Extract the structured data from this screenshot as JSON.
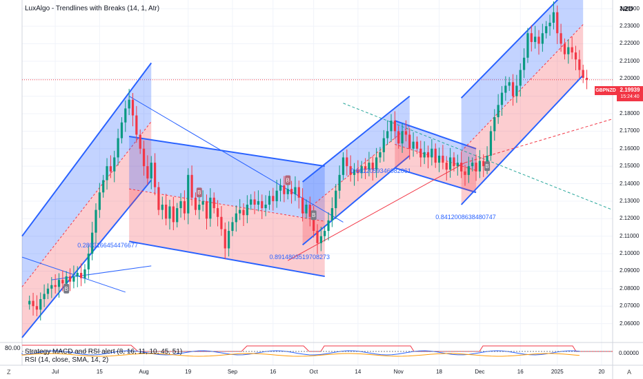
{
  "header": {
    "indicator_title": "LuxAlgo - Trendlines with Breaks (14, 1, Atr)",
    "currency": "NZD"
  },
  "symbol_tag": {
    "symbol": "GBPNZD",
    "price": "2.19939",
    "countdown": "15:24:40"
  },
  "indicator_labels": {
    "strategy": "Strategy MACD and RSI alert (8, 16, 11, 10, 45, 51)",
    "rsi": "RSI (14, close, SMA, 14, 2)",
    "value_left": "80.00",
    "value_right": "0.00000"
  },
  "corner_icons": {
    "left": "Z",
    "right": "A"
  },
  "annotations": [
    {
      "text": "0.2803166454476677",
      "x": 15,
      "y": 2.1045
    },
    {
      "text": "0.8914803519708273",
      "x": 67,
      "y": 2.0975
    },
    {
      "text": "0.6612059346082061",
      "x": 89,
      "y": 2.147
    },
    {
      "text": "0.8412008638480747",
      "x": 112,
      "y": 2.1205
    }
  ],
  "chart_data": {
    "type": "candlestick",
    "title": "LuxAlgo - Trendlines with Breaks (14, 1, Atr)",
    "symbol": "GBPNZD",
    "last_price": 2.19939,
    "y_axis": {
      "range": [
        2.05,
        2.245
      ],
      "ticks": [
        2.06,
        2.07,
        2.08,
        2.09,
        2.1,
        2.11,
        2.12,
        2.13,
        2.14,
        2.15,
        2.16,
        2.17,
        2.18,
        2.19,
        2.2,
        2.21,
        2.22,
        2.23,
        2.24
      ],
      "tick_labels": [
        "2.06000",
        "2.07000",
        "2.08000",
        "2.09000",
        "2.10000",
        "2.11000",
        "2.12000",
        "2.13000",
        "2.14000",
        "2.15000",
        "2.16000",
        "2.17000",
        "2.18000",
        "2.19000",
        "2.20000",
        "2.21000",
        "2.22000",
        "2.23000",
        "2.24000"
      ]
    },
    "x_axis": {
      "range": [
        0,
        160
      ],
      "ticks": [
        {
          "label": "Jul",
          "x": 9
        },
        {
          "label": "15",
          "x": 21
        },
        {
          "label": "Aug",
          "x": 33
        },
        {
          "label": "19",
          "x": 45
        },
        {
          "label": "Sep",
          "x": 57
        },
        {
          "label": "16",
          "x": 68
        },
        {
          "label": "Oct",
          "x": 79
        },
        {
          "label": "14",
          "x": 91
        },
        {
          "label": "Nov",
          "x": 102
        },
        {
          "label": "18",
          "x": 113
        },
        {
          "label": "Dec",
          "x": 124
        },
        {
          "label": "16",
          "x": 135
        },
        {
          "label": "2025",
          "x": 145
        },
        {
          "label": "20",
          "x": 157
        }
      ]
    },
    "closes": [
      2.073,
      2.07,
      2.068,
      2.074,
      2.077,
      2.08,
      2.082,
      2.081,
      2.085,
      2.083,
      2.087,
      2.084,
      2.087,
      2.089,
      2.086,
      2.091,
      2.1,
      2.112,
      2.125,
      2.135,
      2.142,
      2.15,
      2.147,
      2.155,
      2.166,
      2.175,
      2.183,
      2.188,
      2.179,
      2.168,
      2.16,
      2.15,
      2.143,
      2.152,
      2.138,
      2.125,
      2.128,
      2.12,
      2.127,
      2.118,
      2.126,
      2.13,
      2.123,
      2.145,
      2.132,
      2.125,
      2.128,
      2.13,
      2.12,
      2.132,
      2.126,
      2.121,
      2.114,
      2.103,
      2.113,
      2.118,
      2.123,
      2.125,
      2.122,
      2.128,
      2.131,
      2.128,
      2.13,
      2.126,
      2.128,
      2.133,
      2.13,
      2.136,
      2.139,
      2.134,
      2.137,
      2.134,
      2.138,
      2.132,
      2.123,
      2.128,
      2.121,
      2.113,
      2.106,
      2.11,
      2.113,
      2.119,
      2.126,
      2.136,
      2.145,
      2.155,
      2.15,
      2.145,
      2.148,
      2.146,
      2.15,
      2.148,
      2.152,
      2.148,
      2.155,
      2.158,
      2.166,
      2.17,
      2.176,
      2.17,
      2.163,
      2.17,
      2.168,
      2.16,
      2.164,
      2.16,
      2.155,
      2.158,
      2.155,
      2.16,
      2.152,
      2.156,
      2.152,
      2.148,
      2.155,
      2.15,
      2.152,
      2.147,
      2.145,
      2.15,
      2.152,
      2.147,
      2.153,
      2.15,
      2.156,
      2.17,
      2.178,
      2.185,
      2.192,
      2.196,
      2.198,
      2.19,
      2.196,
      2.205,
      2.212,
      2.226,
      2.221,
      2.224,
      2.22,
      2.226,
      2.23,
      2.232,
      2.238,
      2.226,
      2.22,
      2.214,
      2.218,
      2.215,
      2.211,
      2.205,
      2.2005,
      2.1994
    ],
    "channels": [
      {
        "type": "rising",
        "x": [
          0,
          35
        ],
        "upper": [
          2.11,
          2.209
        ],
        "lower": [
          2.052,
          2.142
        ]
      },
      {
        "type": "falling",
        "x": [
          29,
          82
        ],
        "upper": [
          2.167,
          2.15
        ],
        "lower": [
          2.107,
          2.087
        ]
      },
      {
        "type": "rising",
        "x": [
          76,
          105
        ],
        "upper": [
          2.141,
          2.19
        ],
        "lower": [
          2.105,
          2.156
        ]
      },
      {
        "type": "falling",
        "x": [
          101,
          123
        ],
        "upper": [
          2.176,
          2.16
        ],
        "lower": [
          2.149,
          2.135
        ]
      },
      {
        "type": "rising",
        "x": [
          119,
          152
        ],
        "upper": [
          2.189,
          2.26
        ],
        "lower": [
          2.128,
          2.202
        ]
      }
    ],
    "trend_lines": [
      {
        "style": "solid",
        "color": "#2962ff",
        "points": [
          [
            8,
            2.085
          ],
          [
            35,
            2.093
          ]
        ]
      },
      {
        "style": "solid",
        "color": "#2962ff",
        "points": [
          [
            0,
            2.098
          ],
          [
            28,
            2.078
          ]
        ]
      },
      {
        "style": "solid",
        "color": "#2962ff",
        "points": [
          [
            29,
            2.19
          ],
          [
            87,
            2.118
          ]
        ]
      },
      {
        "style": "dashed",
        "color": "#26a69a",
        "points": [
          [
            87,
            2.186
          ],
          [
            160,
            2.125
          ]
        ]
      },
      {
        "style": "solid",
        "color": "#f23645",
        "points": [
          [
            72,
            2.096
          ],
          [
            120,
            2.152
          ]
        ]
      },
      {
        "style": "dashed",
        "color": "#f23645",
        "points": [
          [
            120,
            2.152
          ],
          [
            160,
            2.177
          ]
        ]
      }
    ],
    "markers": [
      {
        "label": "B",
        "kind": "buy",
        "x": 12,
        "y": 2.08
      },
      {
        "label": "B",
        "kind": "sell",
        "x": 48,
        "y": 2.135
      },
      {
        "label": "B",
        "kind": "sell",
        "x": 72,
        "y": 2.142
      },
      {
        "label": "B",
        "kind": "buy",
        "x": 79,
        "y": 2.122
      },
      {
        "label": "B",
        "kind": "buy",
        "x": 126,
        "y": 2.15
      }
    ]
  }
}
